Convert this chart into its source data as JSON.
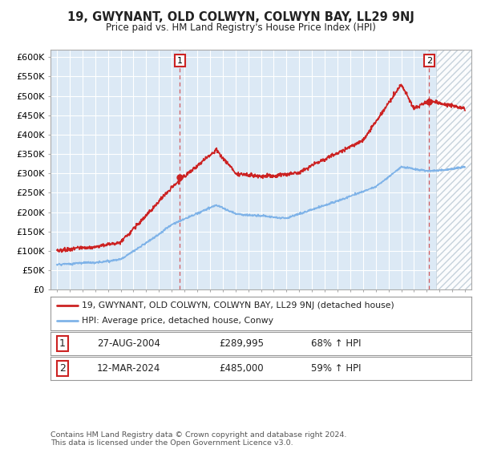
{
  "title": "19, GWYNANT, OLD COLWYN, COLWYN BAY, LL29 9NJ",
  "subtitle": "Price paid vs. HM Land Registry's House Price Index (HPI)",
  "background_color": "#ffffff",
  "plot_bg_color": "#dce9f5",
  "ylim": [
    0,
    620000
  ],
  "yticks": [
    0,
    50000,
    100000,
    150000,
    200000,
    250000,
    300000,
    350000,
    400000,
    450000,
    500000,
    550000,
    600000
  ],
  "ytick_labels": [
    "£0",
    "£50K",
    "£100K",
    "£150K",
    "£200K",
    "£250K",
    "£300K",
    "£350K",
    "£400K",
    "£450K",
    "£500K",
    "£550K",
    "£600K"
  ],
  "xlim_start": 1994.5,
  "xlim_end": 2027.5,
  "line1_color": "#cc2222",
  "line2_color": "#7fb3e8",
  "sale1_x": 2004.65,
  "sale1_y": 289995,
  "sale2_x": 2024.19,
  "sale2_y": 485000,
  "legend_line1": "19, GWYNANT, OLD COLWYN, COLWYN BAY, LL29 9NJ (detached house)",
  "legend_line2": "HPI: Average price, detached house, Conwy",
  "table_row1": [
    "1",
    "27-AUG-2004",
    "£289,995",
    "68% ↑ HPI"
  ],
  "table_row2": [
    "2",
    "12-MAR-2024",
    "£485,000",
    "59% ↑ HPI"
  ],
  "footer": "Contains HM Land Registry data © Crown copyright and database right 2024.\nThis data is licensed under the Open Government Licence v3.0.",
  "grid_color": "#ffffff",
  "font_color": "#222222",
  "hatch_start": 2024.75
}
